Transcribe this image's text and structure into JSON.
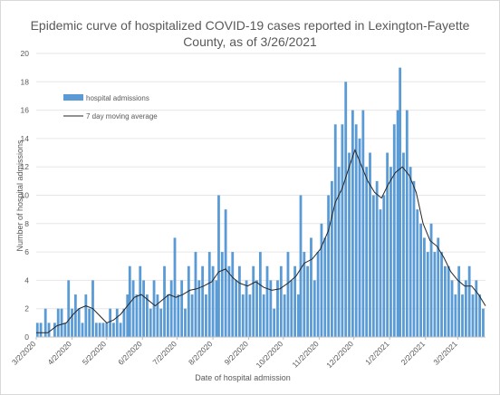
{
  "chart_data": {
    "type": "bar",
    "title": "Epidemic curve of hospitalized COVID-19 cases reported in Lexington-Fayette County, as of 3/26/2021",
    "xlabel": "Date of hospital admission",
    "ylabel": "Number of hospital admissions",
    "ylim": [
      0,
      20
    ],
    "yticks": [
      0,
      2,
      4,
      6,
      8,
      10,
      12,
      14,
      16,
      18,
      20
    ],
    "x_start": "2020-03-02",
    "x_end": "2021-03-26",
    "x_tick_labels": [
      "3/2/2020",
      "4/2/2020",
      "5/2/2020",
      "6/2/2020",
      "7/2/2020",
      "8/2/2020",
      "9/2/2020",
      "10/2/2020",
      "11/2/2020",
      "12/2/2020",
      "1/2/2021",
      "2/2/2021",
      "3/2/2021"
    ],
    "legend_position": "top-left",
    "colors": {
      "bars": "#5b9bd5",
      "line": "#262626"
    },
    "series": [
      {
        "name": "hospital admissions",
        "type": "bar",
        "points": [
          [
            "2020-03-03",
            1
          ],
          [
            "2020-03-06",
            1
          ],
          [
            "2020-03-10",
            2
          ],
          [
            "2020-03-13",
            1
          ],
          [
            "2020-03-18",
            1
          ],
          [
            "2020-03-21",
            2
          ],
          [
            "2020-03-24",
            2
          ],
          [
            "2020-03-27",
            1
          ],
          [
            "2020-03-30",
            4
          ],
          [
            "2020-04-02",
            2
          ],
          [
            "2020-04-05",
            3
          ],
          [
            "2020-04-08",
            2
          ],
          [
            "2020-04-11",
            1
          ],
          [
            "2020-04-14",
            3
          ],
          [
            "2020-04-17",
            2
          ],
          [
            "2020-04-20",
            4
          ],
          [
            "2020-04-23",
            1
          ],
          [
            "2020-04-26",
            1
          ],
          [
            "2020-04-29",
            1
          ],
          [
            "2020-05-02",
            1
          ],
          [
            "2020-05-05",
            2
          ],
          [
            "2020-05-08",
            1
          ],
          [
            "2020-05-11",
            2
          ],
          [
            "2020-05-14",
            1
          ],
          [
            "2020-05-17",
            2
          ],
          [
            "2020-05-20",
            3
          ],
          [
            "2020-05-22",
            5
          ],
          [
            "2020-05-25",
            4
          ],
          [
            "2020-05-28",
            3
          ],
          [
            "2020-05-31",
            5
          ],
          [
            "2020-06-03",
            4
          ],
          [
            "2020-06-06",
            3
          ],
          [
            "2020-06-09",
            2
          ],
          [
            "2020-06-12",
            4
          ],
          [
            "2020-06-15",
            3
          ],
          [
            "2020-06-18",
            2
          ],
          [
            "2020-06-21",
            5
          ],
          [
            "2020-06-24",
            3
          ],
          [
            "2020-06-27",
            4
          ],
          [
            "2020-06-30",
            7
          ],
          [
            "2020-07-03",
            3
          ],
          [
            "2020-07-06",
            4
          ],
          [
            "2020-07-09",
            2
          ],
          [
            "2020-07-12",
            5
          ],
          [
            "2020-07-15",
            3
          ],
          [
            "2020-07-18",
            6
          ],
          [
            "2020-07-21",
            4
          ],
          [
            "2020-07-24",
            5
          ],
          [
            "2020-07-27",
            3
          ],
          [
            "2020-07-30",
            6
          ],
          [
            "2020-08-02",
            5
          ],
          [
            "2020-08-05",
            4
          ],
          [
            "2020-08-07",
            10
          ],
          [
            "2020-08-10",
            6
          ],
          [
            "2020-08-13",
            9
          ],
          [
            "2020-08-16",
            5
          ],
          [
            "2020-08-19",
            6
          ],
          [
            "2020-08-22",
            4
          ],
          [
            "2020-08-25",
            5
          ],
          [
            "2020-08-28",
            3
          ],
          [
            "2020-08-31",
            4
          ],
          [
            "2020-09-03",
            3
          ],
          [
            "2020-09-06",
            5
          ],
          [
            "2020-09-09",
            4
          ],
          [
            "2020-09-12",
            6
          ],
          [
            "2020-09-15",
            3
          ],
          [
            "2020-09-18",
            5
          ],
          [
            "2020-09-21",
            4
          ],
          [
            "2020-09-24",
            2
          ],
          [
            "2020-09-27",
            4
          ],
          [
            "2020-09-30",
            5
          ],
          [
            "2020-10-03",
            3
          ],
          [
            "2020-10-06",
            6
          ],
          [
            "2020-10-09",
            4
          ],
          [
            "2020-10-12",
            5
          ],
          [
            "2020-10-15",
            3
          ],
          [
            "2020-10-17",
            10
          ],
          [
            "2020-10-20",
            6
          ],
          [
            "2020-10-23",
            5
          ],
          [
            "2020-10-26",
            7
          ],
          [
            "2020-10-29",
            4
          ],
          [
            "2020-11-01",
            6
          ],
          [
            "2020-11-04",
            8
          ],
          [
            "2020-11-07",
            7
          ],
          [
            "2020-11-10",
            10
          ],
          [
            "2020-11-13",
            11
          ],
          [
            "2020-11-16",
            15
          ],
          [
            "2020-11-19",
            12
          ],
          [
            "2020-11-22",
            15
          ],
          [
            "2020-11-25",
            18
          ],
          [
            "2020-11-28",
            13
          ],
          [
            "2020-12-01",
            16
          ],
          [
            "2020-12-04",
            15
          ],
          [
            "2020-12-07",
            14
          ],
          [
            "2020-12-10",
            16
          ],
          [
            "2020-12-13",
            12
          ],
          [
            "2020-12-16",
            13
          ],
          [
            "2020-12-19",
            10
          ],
          [
            "2020-12-22",
            11
          ],
          [
            "2020-12-25",
            9
          ],
          [
            "2020-12-28",
            10
          ],
          [
            "2020-12-31",
            13
          ],
          [
            "2021-01-03",
            12
          ],
          [
            "2021-01-06",
            15
          ],
          [
            "2021-01-09",
            16
          ],
          [
            "2021-01-11",
            19
          ],
          [
            "2021-01-14",
            13
          ],
          [
            "2021-01-17",
            16
          ],
          [
            "2021-01-20",
            12
          ],
          [
            "2021-01-23",
            11
          ],
          [
            "2021-01-26",
            9
          ],
          [
            "2021-01-29",
            8
          ],
          [
            "2021-02-01",
            7
          ],
          [
            "2021-02-04",
            6
          ],
          [
            "2021-02-07",
            8
          ],
          [
            "2021-02-10",
            6
          ],
          [
            "2021-02-13",
            7
          ],
          [
            "2021-02-16",
            6
          ],
          [
            "2021-02-19",
            5
          ],
          [
            "2021-02-22",
            5
          ],
          [
            "2021-02-25",
            4
          ],
          [
            "2021-02-28",
            3
          ],
          [
            "2021-03-03",
            5
          ],
          [
            "2021-03-06",
            3
          ],
          [
            "2021-03-09",
            4
          ],
          [
            "2021-03-12",
            5
          ],
          [
            "2021-03-15",
            3
          ],
          [
            "2021-03-18",
            4
          ],
          [
            "2021-03-21",
            3
          ],
          [
            "2021-03-24",
            2
          ]
        ]
      },
      {
        "name": "7 day moving average",
        "type": "line",
        "points": [
          [
            "2020-03-02",
            0.3
          ],
          [
            "2020-03-12",
            0.3
          ],
          [
            "2020-03-20",
            0.8
          ],
          [
            "2020-03-28",
            1.0
          ],
          [
            "2020-04-03",
            1.6
          ],
          [
            "2020-04-08",
            2.0
          ],
          [
            "2020-04-14",
            2.2
          ],
          [
            "2020-04-20",
            2.0
          ],
          [
            "2020-04-26",
            1.5
          ],
          [
            "2020-05-02",
            1.0
          ],
          [
            "2020-05-08",
            1.2
          ],
          [
            "2020-05-14",
            1.6
          ],
          [
            "2020-05-20",
            2.2
          ],
          [
            "2020-05-26",
            2.8
          ],
          [
            "2020-06-01",
            3.0
          ],
          [
            "2020-06-07",
            2.6
          ],
          [
            "2020-06-13",
            2.2
          ],
          [
            "2020-06-19",
            2.6
          ],
          [
            "2020-06-25",
            3.0
          ],
          [
            "2020-07-01",
            2.8
          ],
          [
            "2020-07-07",
            3.0
          ],
          [
            "2020-07-13",
            3.3
          ],
          [
            "2020-07-19",
            3.4
          ],
          [
            "2020-07-25",
            3.6
          ],
          [
            "2020-08-01",
            3.9
          ],
          [
            "2020-08-07",
            4.6
          ],
          [
            "2020-08-13",
            4.8
          ],
          [
            "2020-08-19",
            4.2
          ],
          [
            "2020-08-25",
            3.8
          ],
          [
            "2020-09-01",
            3.6
          ],
          [
            "2020-09-08",
            3.9
          ],
          [
            "2020-09-15",
            3.5
          ],
          [
            "2020-09-22",
            3.3
          ],
          [
            "2020-09-29",
            3.4
          ],
          [
            "2020-10-06",
            3.8
          ],
          [
            "2020-10-13",
            4.3
          ],
          [
            "2020-10-20",
            5.2
          ],
          [
            "2020-10-27",
            5.5
          ],
          [
            "2020-11-03",
            6.2
          ],
          [
            "2020-11-10",
            7.5
          ],
          [
            "2020-11-16",
            9.5
          ],
          [
            "2020-11-22",
            10.5
          ],
          [
            "2020-11-28",
            12.0
          ],
          [
            "2020-12-03",
            13.2
          ],
          [
            "2020-12-08",
            12.2
          ],
          [
            "2020-12-14",
            11.0
          ],
          [
            "2020-12-20",
            10.2
          ],
          [
            "2020-12-26",
            9.8
          ],
          [
            "2021-01-01",
            10.8
          ],
          [
            "2021-01-07",
            11.6
          ],
          [
            "2021-01-13",
            12.0
          ],
          [
            "2021-01-19",
            11.4
          ],
          [
            "2021-01-25",
            10.2
          ],
          [
            "2021-01-31",
            8.0
          ],
          [
            "2021-02-06",
            6.8
          ],
          [
            "2021-02-12",
            6.4
          ],
          [
            "2021-02-18",
            5.6
          ],
          [
            "2021-02-24",
            4.6
          ],
          [
            "2021-03-02",
            4.0
          ],
          [
            "2021-03-08",
            3.6
          ],
          [
            "2021-03-14",
            3.6
          ],
          [
            "2021-03-20",
            3.0
          ],
          [
            "2021-03-26",
            2.2
          ]
        ]
      }
    ]
  }
}
